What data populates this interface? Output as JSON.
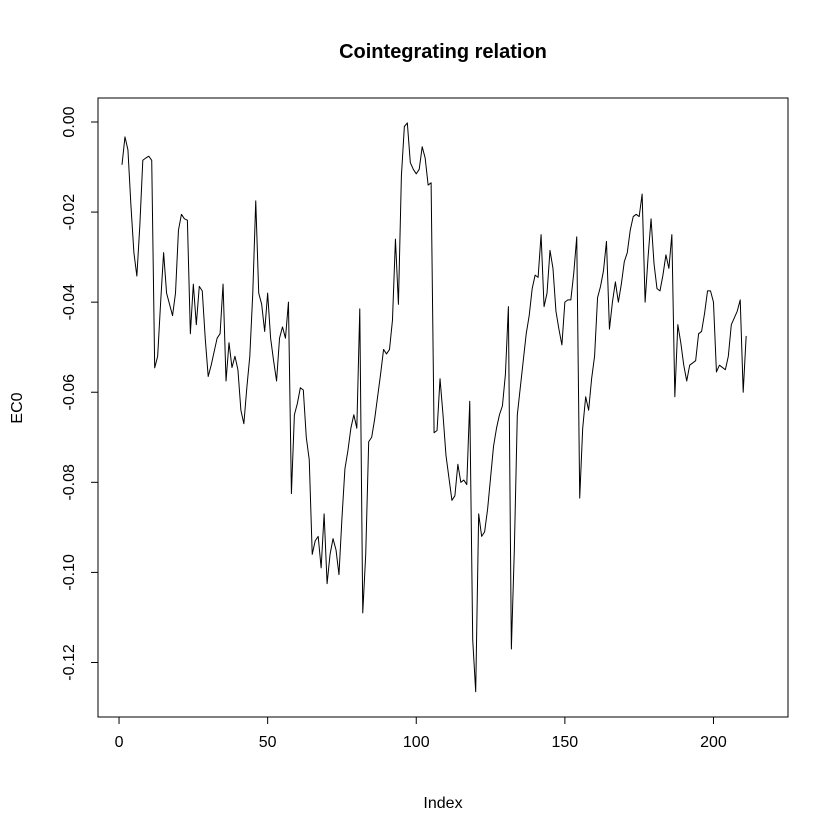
{
  "chart_data": {
    "type": "line",
    "title": "Cointegrating relation",
    "xlabel": "Index",
    "ylabel": "EC0",
    "xlim": [
      1,
      217
    ],
    "ylim": [
      -0.127,
      0
    ],
    "x_ticks": [
      0,
      50,
      100,
      150,
      200
    ],
    "x_tick_labels": [
      "0",
      "50",
      "100",
      "150",
      "200"
    ],
    "y_ticks": [
      0,
      -0.02,
      -0.04,
      -0.06,
      -0.08,
      -0.1,
      -0.12
    ],
    "y_tick_labels": [
      "0.00",
      "-0.02",
      "-0.04",
      "-0.06",
      "-0.08",
      "-0.10",
      "-0.12"
    ],
    "grid": false,
    "legend": "none",
    "series": [
      {
        "color": "#000000",
        "x_start": 1,
        "values": [
          -0.0095,
          -0.0033,
          -0.0062,
          -0.0185,
          -0.029,
          -0.0342,
          -0.023,
          -0.0085,
          -0.008,
          -0.0076,
          -0.0085,
          -0.0546,
          -0.052,
          -0.04,
          -0.029,
          -0.038,
          -0.0405,
          -0.043,
          -0.038,
          -0.024,
          -0.0205,
          -0.0215,
          -0.0218,
          -0.047,
          -0.036,
          -0.045,
          -0.0365,
          -0.0375,
          -0.048,
          -0.0565,
          -0.054,
          -0.051,
          -0.048,
          -0.047,
          -0.036,
          -0.0575,
          -0.049,
          -0.0545,
          -0.052,
          -0.055,
          -0.064,
          -0.067,
          -0.059,
          -0.052,
          -0.038,
          -0.0175,
          -0.038,
          -0.0405,
          -0.0465,
          -0.038,
          -0.048,
          -0.053,
          -0.0575,
          -0.048,
          -0.0455,
          -0.048,
          -0.04,
          -0.0825,
          -0.065,
          -0.0625,
          -0.059,
          -0.0595,
          -0.07,
          -0.075,
          -0.096,
          -0.093,
          -0.092,
          -0.099,
          -0.087,
          -0.1025,
          -0.096,
          -0.0925,
          -0.095,
          -0.1005,
          -0.088,
          -0.077,
          -0.073,
          -0.068,
          -0.065,
          -0.068,
          -0.0415,
          -0.109,
          -0.096,
          -0.071,
          -0.07,
          -0.066,
          -0.061,
          -0.056,
          -0.0505,
          -0.0515,
          -0.0505,
          -0.044,
          -0.026,
          -0.0405,
          -0.012,
          -0.001,
          -0.0002,
          -0.009,
          -0.0105,
          -0.0115,
          -0.0105,
          -0.0055,
          -0.008,
          -0.014,
          -0.0135,
          -0.069,
          -0.0685,
          -0.057,
          -0.065,
          -0.074,
          -0.079,
          -0.084,
          -0.083,
          -0.076,
          -0.08,
          -0.0795,
          -0.0805,
          -0.062,
          -0.115,
          -0.1265,
          -0.087,
          -0.092,
          -0.091,
          -0.086,
          -0.079,
          -0.072,
          -0.068,
          -0.065,
          -0.063,
          -0.056,
          -0.041,
          -0.117,
          -0.095,
          -0.065,
          -0.059,
          -0.053,
          -0.047,
          -0.043,
          -0.037,
          -0.034,
          -0.0345,
          -0.025,
          -0.041,
          -0.038,
          -0.0285,
          -0.0325,
          -0.042,
          -0.046,
          -0.0495,
          -0.04,
          -0.0395,
          -0.0395,
          -0.0335,
          -0.0255,
          -0.0835,
          -0.068,
          -0.061,
          -0.064,
          -0.057,
          -0.052,
          -0.039,
          -0.0365,
          -0.033,
          -0.0265,
          -0.046,
          -0.04,
          -0.0355,
          -0.04,
          -0.036,
          -0.031,
          -0.029,
          -0.024,
          -0.021,
          -0.0205,
          -0.021,
          -0.016,
          -0.04,
          -0.03,
          -0.0215,
          -0.0315,
          -0.037,
          -0.0375,
          -0.034,
          -0.0295,
          -0.0325,
          -0.025,
          -0.061,
          -0.045,
          -0.049,
          -0.054,
          -0.0575,
          -0.054,
          -0.0535,
          -0.053,
          -0.047,
          -0.0465,
          -0.0425,
          -0.0375,
          -0.0375,
          -0.04,
          -0.0555,
          -0.054,
          -0.0545,
          -0.055,
          -0.052,
          -0.045,
          -0.0435,
          -0.042,
          -0.0395,
          -0.06,
          -0.0475
        ]
      }
    ]
  }
}
